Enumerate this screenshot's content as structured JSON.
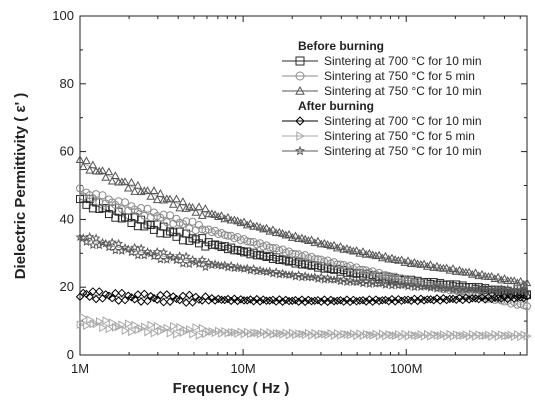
{
  "chart_data": {
    "type": "scatter",
    "xlabel": "Frequency ( Hz )",
    "ylabel": "Dielectric Permittivity ( ε' )",
    "xscale": "log",
    "xlim": [
      1000000,
      550000000
    ],
    "ylim": [
      0,
      100
    ],
    "x_ticks": [
      {
        "value": 1000000,
        "label": "1M"
      },
      {
        "value": 10000000,
        "label": "10M"
      },
      {
        "value": 100000000,
        "label": "100M"
      }
    ],
    "y_ticks": [
      0,
      20,
      40,
      60,
      80,
      100
    ],
    "y_tick_labels": [
      "0",
      "20",
      "40",
      "60",
      "80",
      "100"
    ],
    "legend": {
      "position": "top-right",
      "groups": [
        {
          "header": "Before burning",
          "series": [
            0,
            1,
            2
          ]
        },
        {
          "header": "After burning",
          "series": [
            3,
            4,
            5
          ]
        }
      ]
    },
    "series": [
      {
        "name": "Sintering at 700 °C for 10 min",
        "marker": "square",
        "color": "#2a2a2a",
        "x": [
          1000000,
          2000000,
          5000000,
          10000000,
          20000000,
          50000000,
          100000000,
          200000000,
          550000000
        ],
        "y": [
          46,
          40,
          34,
          30.5,
          27.5,
          24,
          22,
          20.5,
          18
        ]
      },
      {
        "name": "Sintering at 750 °C for   5 min",
        "marker": "circle",
        "color": "#8c8c8c",
        "x": [
          1000000,
          2000000,
          5000000,
          10000000,
          20000000,
          50000000,
          100000000,
          200000000,
          550000000
        ],
        "y": [
          48,
          43.5,
          38,
          34,
          30,
          25.5,
          22,
          19,
          14.5
        ]
      },
      {
        "name": "Sintering at 750 °C for 10 min",
        "marker": "triangle-up",
        "color": "#555555",
        "x": [
          1000000,
          2000000,
          5000000,
          10000000,
          20000000,
          50000000,
          100000000,
          200000000,
          550000000
        ],
        "y": [
          57,
          50,
          43,
          39,
          35,
          30.5,
          27.5,
          25,
          21
        ]
      },
      {
        "name": "Sintering at 700 °C for 10 min",
        "marker": "diamond",
        "color": "#000000",
        "x": [
          1000000,
          2000000,
          5000000,
          10000000,
          20000000,
          50000000,
          100000000,
          200000000,
          550000000
        ],
        "y": [
          18,
          17,
          16.5,
          16.2,
          16,
          16,
          16.2,
          16.5,
          17
        ]
      },
      {
        "name": "Sintering at 750 °C for   5 min",
        "marker": "triangle-right",
        "color": "#a8a8a8",
        "x": [
          1000000,
          2000000,
          5000000,
          10000000,
          20000000,
          50000000,
          100000000,
          200000000,
          550000000
        ],
        "y": [
          10,
          8,
          7,
          6.5,
          6.2,
          6,
          5.8,
          5.8,
          5.7
        ]
      },
      {
        "name": "Sintering at 750 °C for 10 min",
        "marker": "star",
        "color": "#5a5a5a",
        "x": [
          1000000,
          2000000,
          5000000,
          10000000,
          20000000,
          50000000,
          100000000,
          200000000,
          550000000
        ],
        "y": [
          34.5,
          31,
          27.5,
          25.5,
          23.5,
          21.5,
          20.5,
          19.5,
          19
        ]
      }
    ]
  }
}
